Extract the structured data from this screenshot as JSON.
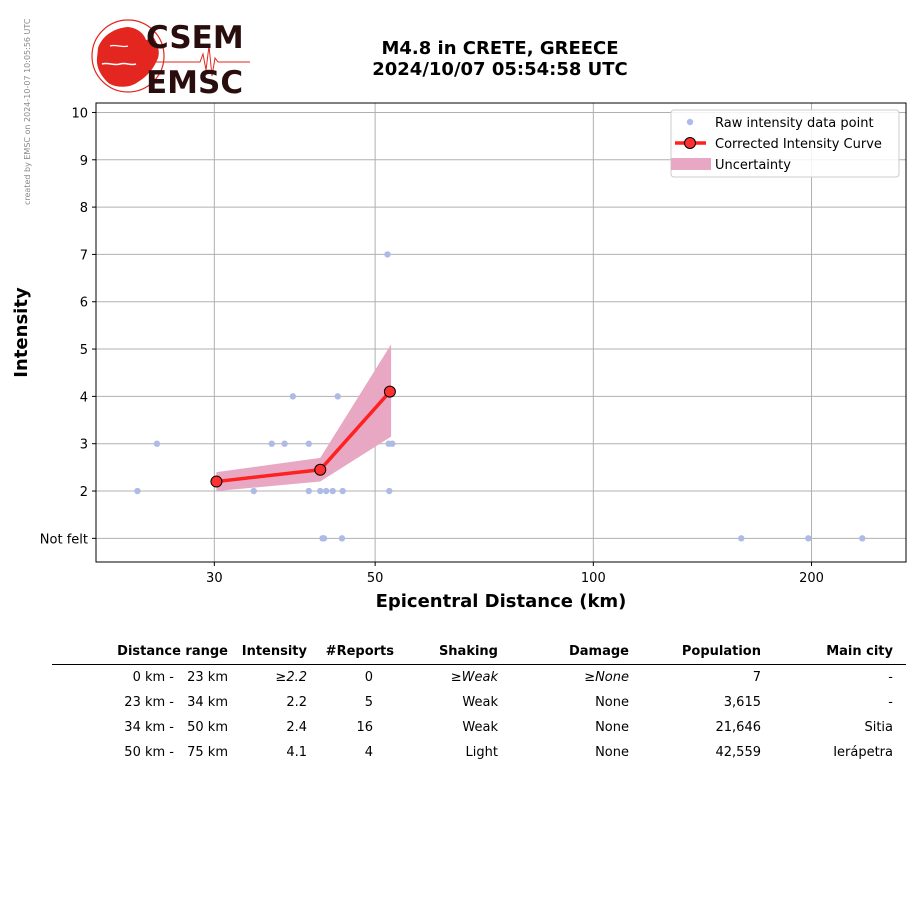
{
  "credit": "created by EMSC on 2024-10-07 10:05:56 UTC",
  "logo": {
    "line1": "CSEM",
    "line2": "EMSC",
    "color_red": "#e3261f",
    "color_dark": "#2a0e0e"
  },
  "title": {
    "line1": "M4.8 in CRETE, GREECE",
    "line2": "2024/10/07 05:54:58 UTC"
  },
  "colors": {
    "raw": "#aebbe7",
    "curve": "#ff2020",
    "marker_fill": "#ff3030",
    "uncertainty": "#e8a8c3",
    "grid": "#b0b0b0"
  },
  "chart_data": {
    "type": "scatter",
    "xlabel": "Epicentral Distance (km)",
    "ylabel": "Intensity",
    "xscale": "log",
    "xlim": [
      20.6,
      270
    ],
    "ylim": [
      0.5,
      10.2
    ],
    "xticks": [
      30,
      50,
      100,
      200
    ],
    "yticks": [
      1,
      2,
      3,
      4,
      5,
      6,
      7,
      8,
      9,
      10
    ],
    "ytick_labels": [
      "Not felt",
      "2",
      "3",
      "4",
      "5",
      "6",
      "7",
      "8",
      "9",
      "10"
    ],
    "grid": true,
    "legend_position": "top-right",
    "legend": [
      "Raw intensity data point",
      "Corrected Intensity Curve",
      "Uncertainty"
    ],
    "series": [
      {
        "name": "Raw intensity data point",
        "type": "scatter",
        "points": [
          [
            23.5,
            2
          ],
          [
            25,
            3
          ],
          [
            34,
            2
          ],
          [
            36,
            3
          ],
          [
            37.5,
            3
          ],
          [
            38.5,
            4
          ],
          [
            40.5,
            3
          ],
          [
            40.5,
            2
          ],
          [
            42,
            2
          ],
          [
            42.3,
            1
          ],
          [
            42.5,
            1
          ],
          [
            42.8,
            2
          ],
          [
            43.7,
            2
          ],
          [
            44.4,
            4
          ],
          [
            45,
            1
          ],
          [
            45.1,
            2
          ],
          [
            52,
            7
          ],
          [
            52.2,
            3
          ],
          [
            52.3,
            2
          ],
          [
            52.8,
            3
          ],
          [
            160,
            1
          ],
          [
            198,
            1
          ],
          [
            235,
            1
          ]
        ]
      },
      {
        "name": "Corrected Intensity Curve",
        "type": "line",
        "points": [
          [
            30.2,
            2.2
          ],
          [
            42,
            2.45
          ],
          [
            52.4,
            4.1
          ]
        ]
      },
      {
        "name": "Uncertainty",
        "type": "area",
        "upper": [
          [
            30.2,
            2.4
          ],
          [
            42,
            2.7
          ],
          [
            52.6,
            5.1
          ]
        ],
        "lower": [
          [
            30.2,
            2.0
          ],
          [
            42,
            2.2
          ],
          [
            52.6,
            3.15
          ]
        ]
      }
    ]
  },
  "table": {
    "headers": [
      "Distance range",
      "Intensity",
      "#Reports",
      "Shaking",
      "Damage",
      "Population",
      "Main city"
    ],
    "rows": [
      {
        "from": "0 km -",
        "to": "23 km",
        "intensity": "≥2.2",
        "reports": "0",
        "shaking": "≥Weak",
        "damage": "≥None",
        "population": "7",
        "city": "-"
      },
      {
        "from": "23 km -",
        "to": "34 km",
        "intensity": "2.2",
        "reports": "5",
        "shaking": "Weak",
        "damage": "None",
        "population": "3,615",
        "city": "-"
      },
      {
        "from": "34 km -",
        "to": "50 km",
        "intensity": "2.4",
        "reports": "16",
        "shaking": "Weak",
        "damage": "None",
        "population": "21,646",
        "city": "Sitia"
      },
      {
        "from": "50 km -",
        "to": "75 km",
        "intensity": "4.1",
        "reports": "4",
        "shaking": "Light",
        "damage": "None",
        "population": "42,559",
        "city": "Ierápetra"
      }
    ]
  }
}
